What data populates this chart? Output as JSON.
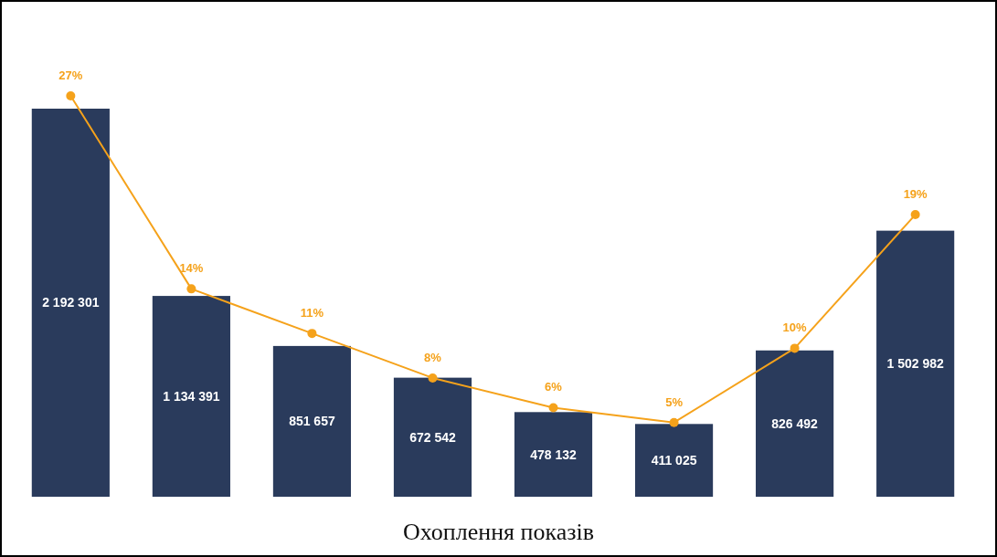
{
  "chart_data": [
    {
      "type": "bar",
      "title": "Охоплення показів",
      "categories": [
        null,
        null,
        null,
        null,
        null,
        null,
        null,
        null
      ],
      "color": "#2a3b5c",
      "values": [
        2192301,
        1134391,
        851657,
        672542,
        478132,
        411025,
        826492,
        1502982
      ],
      "value_labels": [
        "2 192 301",
        "1 134 391",
        "851 657",
        "672 542",
        "478 132",
        "411 025",
        "826 492",
        "1 502 982"
      ]
    },
    {
      "type": "line",
      "categories": [
        null,
        null,
        null,
        null,
        null,
        null,
        null,
        null
      ],
      "color": "#f5a21b",
      "marker": "circle",
      "values": [
        27,
        14,
        11,
        8,
        6,
        5,
        10,
        19
      ],
      "value_labels": [
        "27%",
        "14%",
        "11%",
        "8%",
        "6%",
        "5%",
        "10%",
        "19%"
      ]
    }
  ]
}
